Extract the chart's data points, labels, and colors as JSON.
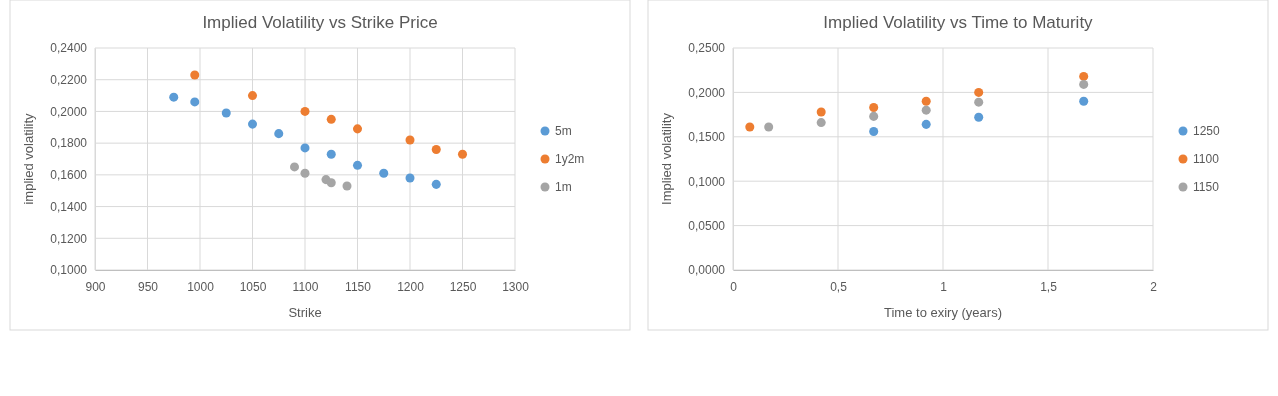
{
  "chart_data": [
    {
      "type": "scatter",
      "title": "Implied Volatility vs Strike Price",
      "xlabel": "Strike",
      "ylabel": "implied volatility",
      "legend": "right",
      "grid": true,
      "marker": "circle",
      "xlim": [
        900,
        1300
      ],
      "xticks": [
        900,
        950,
        1000,
        1050,
        1100,
        1150,
        1200,
        1250,
        1300
      ],
      "ylim": [
        0.1,
        0.24
      ],
      "yticks": [
        {
          "value": 0.1,
          "label": "0,1000"
        },
        {
          "value": 0.12,
          "label": "0,1200"
        },
        {
          "value": 0.14,
          "label": "0,1400"
        },
        {
          "value": 0.16,
          "label": "0,1600"
        },
        {
          "value": 0.18,
          "label": "0,1800"
        },
        {
          "value": 0.2,
          "label": "0,2000"
        },
        {
          "value": 0.22,
          "label": "0,2200"
        },
        {
          "value": 0.24,
          "label": "0,2400"
        }
      ],
      "series": [
        {
          "name": "5m",
          "color": "#5b9bd5",
          "x": [
            975,
            995,
            1025,
            1050,
            1075,
            1100,
            1125,
            1150,
            1175,
            1200,
            1225
          ],
          "values": [
            0.209,
            0.206,
            0.199,
            0.192,
            0.186,
            0.177,
            0.173,
            0.166,
            0.161,
            0.158,
            0.154
          ]
        },
        {
          "name": "1y2m",
          "color": "#ed7d31",
          "x": [
            995,
            1050,
            1100,
            1125,
            1150,
            1200,
            1225,
            1250
          ],
          "values": [
            0.223,
            0.21,
            0.2,
            0.195,
            0.189,
            0.182,
            0.176,
            0.173
          ]
        },
        {
          "name": "1m",
          "color": "#a5a5a5",
          "x": [
            1090,
            1100,
            1120,
            1125,
            1140
          ],
          "values": [
            0.165,
            0.161,
            0.157,
            0.155,
            0.153
          ]
        }
      ]
    },
    {
      "type": "scatter",
      "title": "Implied Volatility vs Time to Maturity",
      "xlabel": "Time to exiry (years)",
      "ylabel": "Implied volatility",
      "legend": "right",
      "grid": true,
      "marker": "circle",
      "xlim": [
        0,
        2
      ],
      "xticks": [
        0,
        {
          "value": 0.5,
          "label": "0,5"
        },
        1,
        {
          "value": 1.5,
          "label": "1,5"
        },
        2
      ],
      "ylim": [
        0,
        0.25
      ],
      "yticks": [
        {
          "value": 0,
          "label": "0,0000"
        },
        {
          "value": 0.05,
          "label": "0,0500"
        },
        {
          "value": 0.1,
          "label": "0,1000"
        },
        {
          "value": 0.15,
          "label": "0,1500"
        },
        {
          "value": 0.2,
          "label": "0,2000"
        },
        {
          "value": 0.25,
          "label": "0,2500"
        }
      ],
      "series": [
        {
          "name": "1250",
          "color": "#5b9bd5",
          "x": [
            0.67,
            0.92,
            1.17,
            1.67
          ],
          "values": [
            0.156,
            0.164,
            0.172,
            0.19
          ]
        },
        {
          "name": "1100",
          "color": "#ed7d31",
          "x": [
            0.08,
            0.42,
            0.67,
            0.92,
            1.17,
            1.67
          ],
          "values": [
            0.161,
            0.178,
            0.183,
            0.19,
            0.2,
            0.218
          ]
        },
        {
          "name": "1150",
          "color": "#a5a5a5",
          "x": [
            0.17,
            0.42,
            0.67,
            0.92,
            1.17,
            1.67
          ],
          "values": [
            0.161,
            0.166,
            0.173,
            0.18,
            0.189,
            0.209
          ]
        }
      ]
    }
  ]
}
